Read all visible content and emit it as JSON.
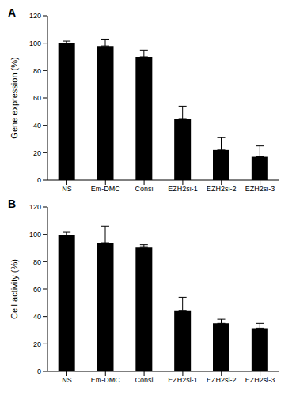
{
  "chart_data": [
    {
      "type": "bar",
      "title": "A",
      "y_label": "Gene expression (%)",
      "categories": [
        "NS",
        "Em-DMC",
        "Consi",
        "EZH2si-1",
        "EZH2si-2",
        "EZH2si-3"
      ],
      "values": [
        100,
        98,
        90,
        45,
        22,
        17
      ],
      "errors": [
        1.5,
        5,
        5,
        9,
        9,
        8
      ],
      "color": "#000000",
      "ylim": [
        0,
        120
      ],
      "yticks": [
        0,
        20,
        40,
        60,
        80,
        100,
        120
      ],
      "grid": false
    },
    {
      "type": "bar",
      "title": "B",
      "y_label": "Cell activity (%)",
      "categories": [
        "NS",
        "Em-DMC",
        "Consi",
        "EZH2si-1",
        "EZH2si-2",
        "EZH2si-3"
      ],
      "values": [
        99.5,
        94,
        90.5,
        44,
        35,
        31.5
      ],
      "errors": [
        2,
        12,
        2,
        10,
        3,
        3.5
      ],
      "color": "#000000",
      "ylim": [
        0,
        120
      ],
      "yticks": [
        0,
        20,
        40,
        60,
        80,
        100,
        120
      ],
      "grid": false
    }
  ]
}
